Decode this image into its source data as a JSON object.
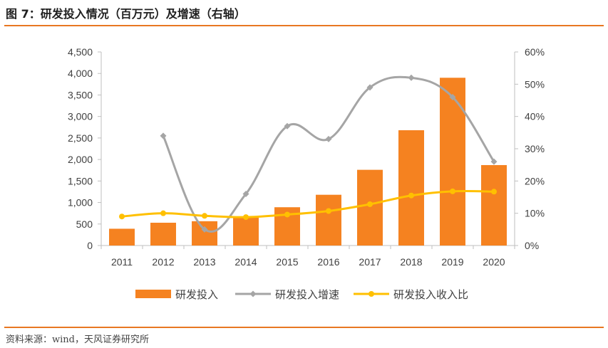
{
  "title": "图 7：研发投入情况（百万元）及增速（右轴）",
  "source": "资料来源：wind，天风证券研究所",
  "colors": {
    "bar": "#f58220",
    "growth": "#a5a5a5",
    "ratio": "#ffc000",
    "axis": "#bfbfbf",
    "rule": "#e87722"
  },
  "chart_data": {
    "type": "bar",
    "categories": [
      "2011",
      "2012",
      "2013",
      "2014",
      "2015",
      "2016",
      "2017",
      "2018",
      "2019",
      "2020"
    ],
    "series": [
      {
        "name": "研发投入",
        "type": "bar",
        "axis": "left",
        "values": [
          390,
          530,
          565,
          650,
          890,
          1180,
          1760,
          2680,
          3900,
          1870
        ]
      },
      {
        "name": "研发投入增速",
        "type": "line",
        "axis": "right",
        "marker": "diamond",
        "values": [
          null,
          0.34,
          0.05,
          0.16,
          0.37,
          0.33,
          0.49,
          0.52,
          0.46,
          0.26
        ]
      },
      {
        "name": "研发投入收入比",
        "type": "line",
        "axis": "right",
        "marker": "circle",
        "values": [
          0.09,
          0.1,
          0.092,
          0.088,
          0.096,
          0.107,
          0.128,
          0.155,
          0.168,
          0.167
        ]
      }
    ],
    "y_left": {
      "min": 0,
      "max": 4500,
      "ticks": [
        "0",
        "500",
        "1,000",
        "1,500",
        "2,000",
        "2,500",
        "3,000",
        "3,500",
        "4,000",
        "4,500"
      ]
    },
    "y_right": {
      "min": 0,
      "max": 0.6,
      "ticks": [
        "0%",
        "10%",
        "20%",
        "30%",
        "40%",
        "50%",
        "60%"
      ]
    },
    "legend_position": "bottom",
    "grid": false
  }
}
